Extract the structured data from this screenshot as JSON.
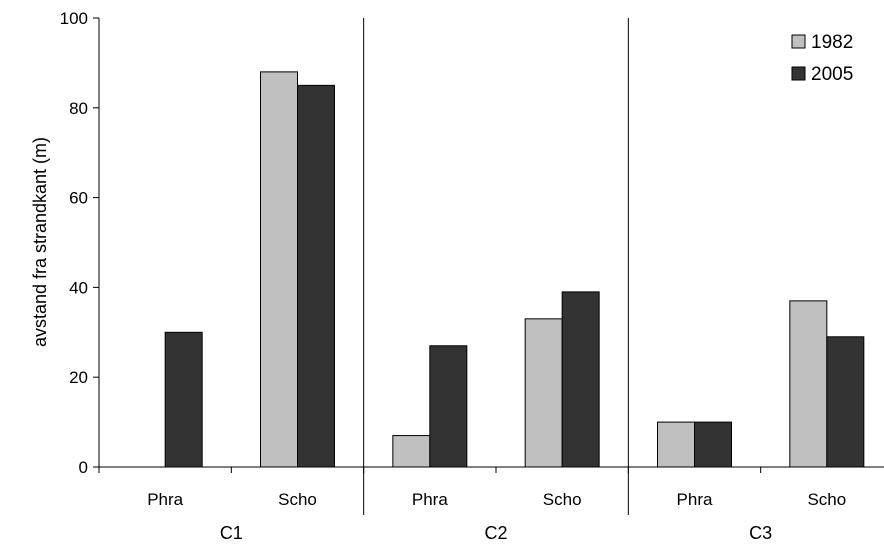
{
  "chart_data": {
    "type": "bar",
    "ylabel": "avstand fra strandkant (m)",
    "ylim": [
      0,
      100
    ],
    "yticks": [
      0,
      20,
      40,
      60,
      80,
      100
    ],
    "grid": false,
    "legend_position": "top-right",
    "groups": [
      "C1",
      "C2",
      "C3"
    ],
    "categories": [
      "Phra",
      "Scho"
    ],
    "series": [
      {
        "name": "1982",
        "color": "#c0c0c0",
        "values": [
          [
            null,
            88
          ],
          [
            7,
            33
          ],
          [
            10,
            37
          ]
        ]
      },
      {
        "name": "2005",
        "color": "#333333",
        "values": [
          [
            30,
            85
          ],
          [
            27,
            39
          ],
          [
            10,
            29
          ]
        ]
      }
    ]
  }
}
